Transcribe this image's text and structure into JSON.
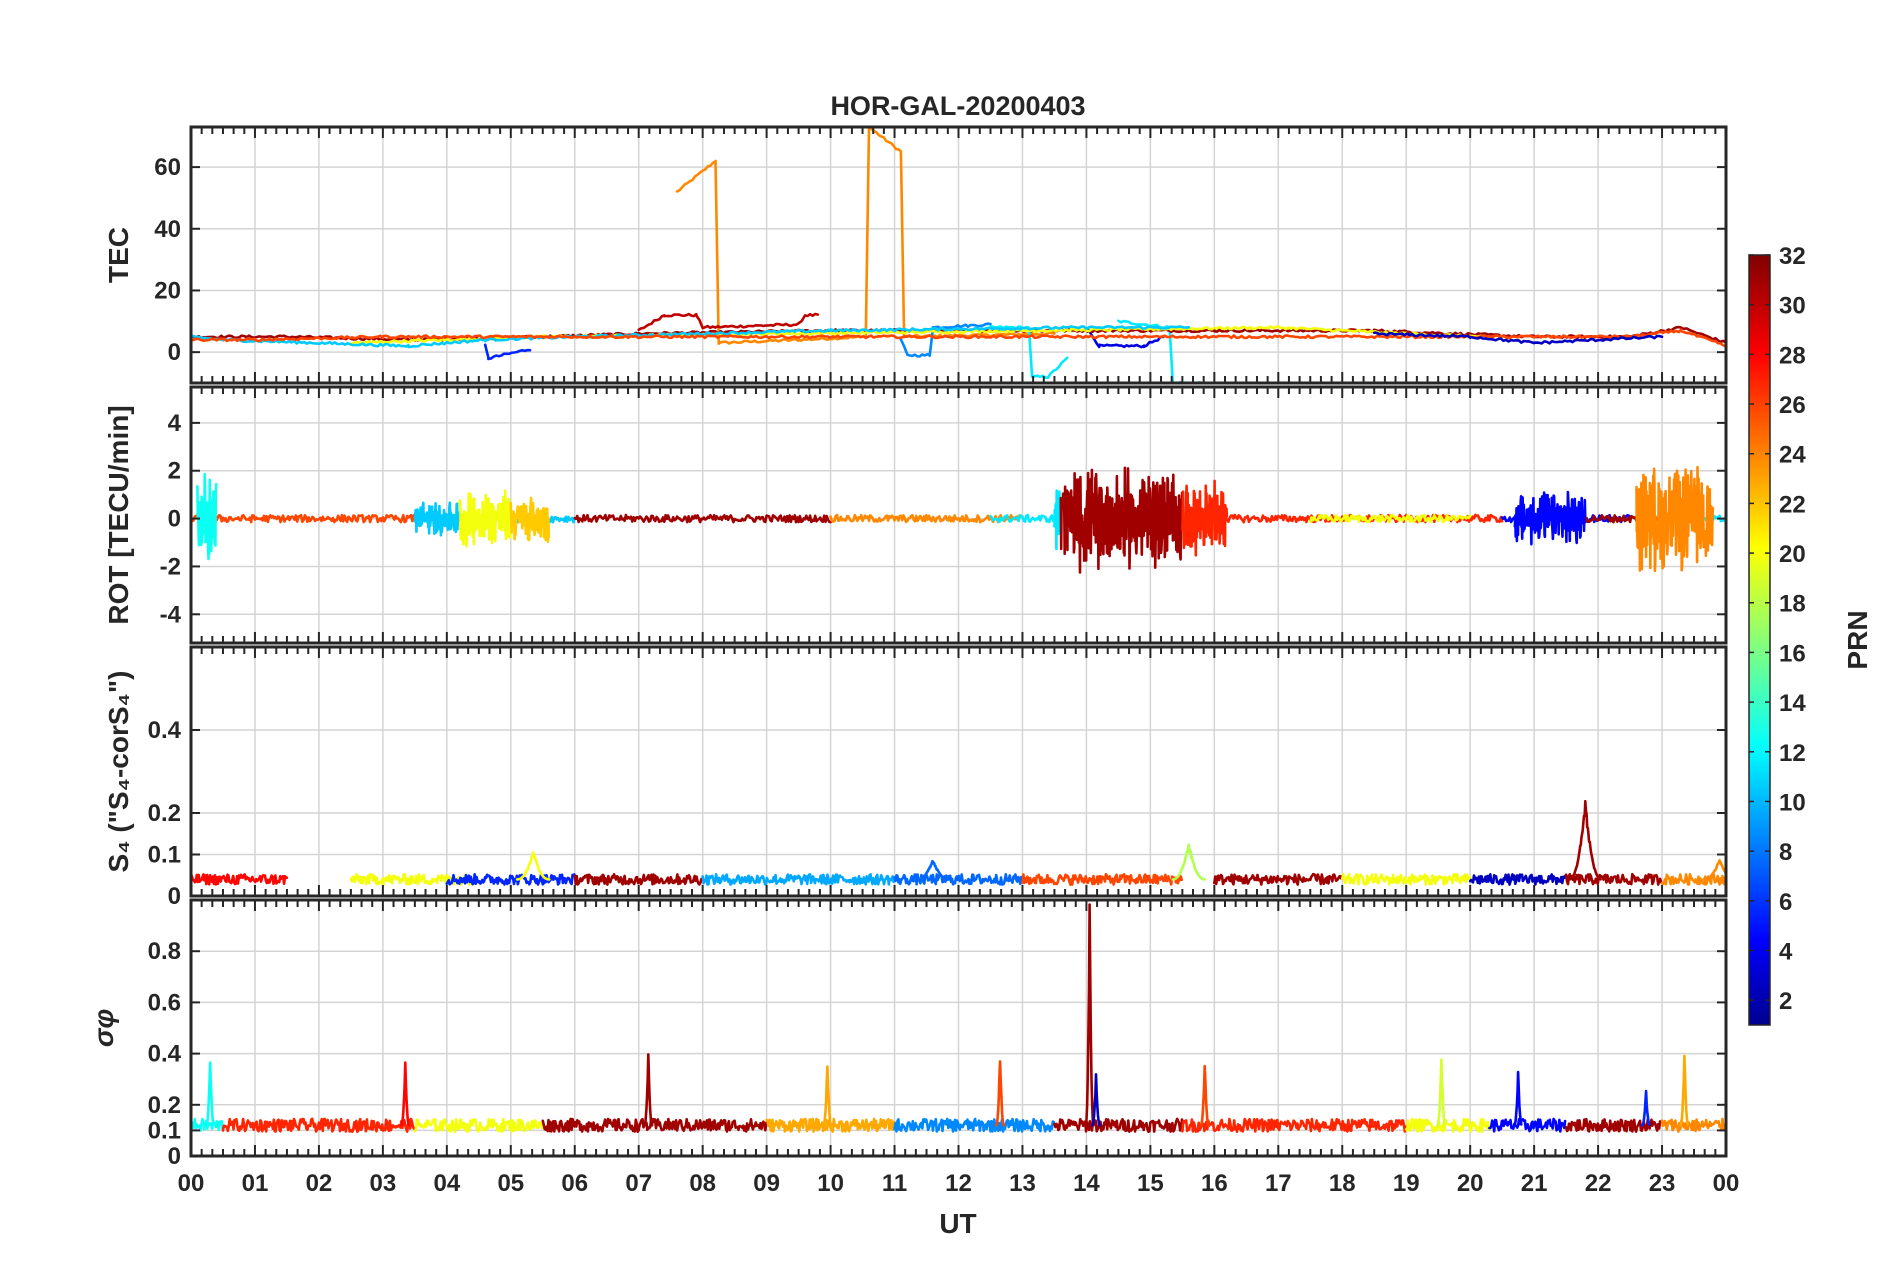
{
  "title": "HOR-GAL-20200403",
  "xlabel": "UT",
  "x_ticks": [
    "00",
    "01",
    "02",
    "03",
    "04",
    "05",
    "06",
    "07",
    "08",
    "09",
    "10",
    "11",
    "12",
    "13",
    "14",
    "15",
    "16",
    "17",
    "18",
    "19",
    "20",
    "21",
    "22",
    "23",
    "00"
  ],
  "colors": {
    "frame": "#262626",
    "grid": "#d4d4d4",
    "jet_stops": [
      "#00008f",
      "#0000ff",
      "#00ffff",
      "#ffff00",
      "#ff0000",
      "#800000"
    ]
  },
  "colorbar": {
    "label": "PRN",
    "range": [
      1,
      32
    ],
    "ticks": [
      "2",
      "4",
      "6",
      "8",
      "10",
      "12",
      "14",
      "16",
      "18",
      "20",
      "22",
      "24",
      "26",
      "28",
      "30",
      "32"
    ]
  },
  "chart_data": [
    {
      "type": "line",
      "panel": "tec",
      "ylabel": "TEC",
      "ylim": [
        -10,
        73
      ],
      "yticks": [
        "0",
        "20",
        "40",
        "60"
      ],
      "series": [
        {
          "name": "PRN 24 (a)",
          "prn": 24,
          "x": [
            7.6,
            8.2,
            8.25,
            9.5
          ],
          "values": [
            52,
            62,
            3,
            4
          ]
        },
        {
          "name": "PRN 24 (b)",
          "prn": 24,
          "x": [
            9.5,
            10.55,
            10.6,
            11.1,
            11.15,
            13.5
          ],
          "values": [
            4,
            5,
            73,
            65,
            5,
            6
          ]
        },
        {
          "name": "PRN 30",
          "prn": 30,
          "x": [
            7.0,
            7.4,
            7.9,
            8.0,
            9.5,
            9.6,
            9.8
          ],
          "values": [
            7,
            12,
            12,
            8,
            9,
            12,
            12
          ]
        },
        {
          "name": "PRN 12 (a)",
          "prn": 12,
          "x": [
            12.5,
            13.1,
            13.15,
            13.4,
            13.7
          ],
          "values": [
            8,
            8,
            -8,
            -8,
            -2
          ]
        },
        {
          "name": "PRN 12 (b)",
          "prn": 12,
          "x": [
            14.5,
            15.3,
            15.35,
            15.85
          ],
          "values": [
            10,
            8,
            -10,
            -10
          ]
        },
        {
          "name": "PRN 6",
          "prn": 6,
          "x": [
            4.6,
            4.65,
            5.3
          ],
          "values": [
            2,
            -2,
            1
          ]
        },
        {
          "name": "PRN 4",
          "prn": 4,
          "x": [
            14.0,
            14.2,
            14.9,
            15.2
          ],
          "values": [
            8,
            2,
            2,
            5
          ]
        },
        {
          "name": "PRN 9",
          "prn": 9,
          "x": [
            11.1,
            11.2,
            11.55,
            11.6,
            12.5
          ],
          "values": [
            4,
            -1,
            -1,
            8,
            9
          ]
        },
        {
          "name": "PRN 31",
          "prn": 31,
          "x": [
            0,
            1.5,
            3.5,
            5.5,
            7.0,
            10.0,
            13.5,
            16.0,
            18.5,
            21.0,
            22.5,
            23.3,
            24
          ],
          "values": [
            5,
            5,
            4,
            5,
            6,
            7,
            7,
            7,
            7,
            5,
            5,
            8,
            3
          ]
        },
        {
          "name": "PRN 20",
          "prn": 20,
          "x": [
            2.5,
            4.0,
            5.5,
            17.0,
            19.0,
            20.2
          ],
          "values": [
            3,
            4,
            5,
            8,
            6,
            5
          ]
        },
        {
          "name": "PRN 11",
          "prn": 11,
          "x": [
            0,
            0.5,
            3.4,
            4.6,
            6.0,
            10.0,
            14.0,
            15.6
          ],
          "values": [
            5,
            4,
            2,
            4,
            5,
            7,
            8,
            8
          ]
        },
        {
          "name": "PRN 26",
          "prn": 26,
          "x": [
            0,
            1.0,
            3.0,
            22.5,
            23.3,
            24
          ],
          "values": [
            4,
            4,
            5,
            5,
            7,
            2
          ]
        },
        {
          "name": "PRN 3",
          "prn": 3,
          "x": [
            18.5,
            20.0,
            21.0,
            22.0,
            23.0
          ],
          "values": [
            6,
            5,
            3,
            4,
            5
          ]
        }
      ]
    },
    {
      "type": "line",
      "panel": "rot",
      "ylabel": "ROT [TECU/min]",
      "ylim": [
        -5.2,
        5.5
      ],
      "yticks": [
        "-4",
        "-2",
        "0",
        "2",
        "4"
      ],
      "active_periods": [
        {
          "prn": 13,
          "range": [
            0.1,
            0.4
          ],
          "amplitude": 2.0
        },
        {
          "prn": 11,
          "range": [
            3.5,
            4.2
          ],
          "amplitude": 0.8
        },
        {
          "prn": 20,
          "range": [
            4.2,
            5.0
          ],
          "amplitude": 1.3
        },
        {
          "prn": 22,
          "range": [
            5.0,
            5.6
          ],
          "amplitude": 1.0
        },
        {
          "prn": 12,
          "range": [
            13.5,
            13.6
          ],
          "amplitude": 1.6
        },
        {
          "prn": 31,
          "range": [
            13.6,
            15.5
          ],
          "amplitude": 2.3
        },
        {
          "prn": 27,
          "range": [
            15.5,
            16.2
          ],
          "amplitude": 1.6
        },
        {
          "prn": 5,
          "range": [
            20.7,
            21.8
          ],
          "amplitude": 1.2
        },
        {
          "prn": 24,
          "range": [
            22.6,
            23.8
          ],
          "amplitude": 2.4
        }
      ],
      "baseline_amplitude": 0.15
    },
    {
      "type": "line",
      "panel": "s4",
      "ylabel": "S₄ (\"S₄-corS₄\")",
      "ylim": [
        0,
        0.6
      ],
      "yticks": [
        "0",
        "0.1",
        "0.2",
        "0.4"
      ],
      "baseline": 0.04,
      "peaks": [
        {
          "prn": 20,
          "x": 5.35,
          "value": 0.11
        },
        {
          "prn": 18,
          "x": 15.6,
          "value": 0.13
        },
        {
          "prn": 31,
          "x": 21.8,
          "value": 0.23
        },
        {
          "prn": 24,
          "x": 23.9,
          "value": 0.09
        },
        {
          "prn": 8,
          "x": 11.6,
          "value": 0.09
        }
      ]
    },
    {
      "type": "line",
      "panel": "sigma_phi",
      "ylabel": "σφ",
      "ylim": [
        0,
        1
      ],
      "yticks": [
        "0",
        "0.1",
        "0.2",
        "0.4",
        "0.6",
        "0.8"
      ],
      "baseline": 0.12,
      "peaks": [
        {
          "prn": 13,
          "x": 0.3,
          "value": 0.4
        },
        {
          "prn": 28,
          "x": 3.35,
          "value": 0.38
        },
        {
          "prn": 31,
          "x": 7.15,
          "value": 0.41
        },
        {
          "prn": 23,
          "x": 9.95,
          "value": 0.38
        },
        {
          "prn": 26,
          "x": 12.65,
          "value": 0.41
        },
        {
          "prn": 31,
          "x": 14.05,
          "value": 1.0
        },
        {
          "prn": 3,
          "x": 14.15,
          "value": 0.32
        },
        {
          "prn": 26,
          "x": 15.85,
          "value": 0.38
        },
        {
          "prn": 19,
          "x": 19.55,
          "value": 0.41
        },
        {
          "prn": 5,
          "x": 20.75,
          "value": 0.33
        },
        {
          "prn": 6,
          "x": 22.75,
          "value": 0.26
        },
        {
          "prn": 23,
          "x": 23.35,
          "value": 0.41
        }
      ]
    }
  ]
}
